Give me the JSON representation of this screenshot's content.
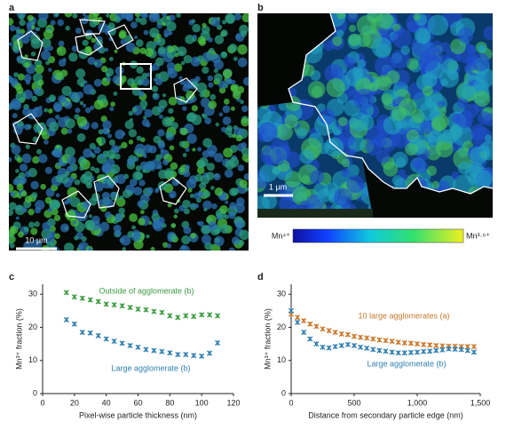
{
  "panels": {
    "a": {
      "label": "a",
      "scale_bar": "10 μm"
    },
    "b": {
      "label": "b",
      "scale_bar": "1 μm",
      "colorbar_low": "Mn⁴⁺",
      "colorbar_high": "Mn³·⁵⁺"
    }
  },
  "chart_data": [
    {
      "type": "scatter",
      "panel_label": "c",
      "xlabel": "Pixel-wise particle thickness (nm)",
      "ylabel": "Mn³⁺ fraction (%)",
      "xlim": [
        0,
        120
      ],
      "xticks": [
        0,
        20,
        40,
        60,
        80,
        100,
        120
      ],
      "ylim": [
        0,
        33
      ],
      "yticks": [
        0,
        10,
        20,
        30
      ],
      "x": [
        15,
        20,
        25,
        30,
        35,
        40,
        45,
        50,
        55,
        60,
        65,
        70,
        75,
        80,
        85,
        90,
        95,
        100,
        105,
        110
      ],
      "series": [
        {
          "name": "Outside of agglomerate (b)",
          "color": "#3a9a3e",
          "values": [
            30.5,
            29.2,
            28.8,
            28.3,
            27.8,
            27,
            26.8,
            26.5,
            26,
            25.5,
            25.3,
            24.8,
            24.5,
            23.5,
            23,
            23.5,
            23.3,
            23.8,
            23.8,
            23.5
          ]
        },
        {
          "name": "Large agglomerate (b)",
          "color": "#2f7fb0",
          "values": [
            22.3,
            21,
            18.5,
            18.3,
            17.5,
            16.5,
            15.8,
            15.2,
            14.5,
            14,
            13.3,
            13,
            12.7,
            12.3,
            11.8,
            11.8,
            11.5,
            11.3,
            12.2,
            15.3
          ]
        }
      ]
    },
    {
      "type": "scatter",
      "panel_label": "d",
      "xlabel": "Distance from secondary particle edge (nm)",
      "ylabel": "Mn³⁺ fraction (%)",
      "xlim": [
        0,
        1500
      ],
      "xticks": [
        0,
        500,
        {
          "value": 1000,
          "label": "1,000"
        },
        {
          "value": 1500,
          "label": "1,500"
        }
      ],
      "ylim": [
        0,
        33
      ],
      "yticks": [
        0,
        10,
        20,
        30
      ],
      "x": [
        0,
        50,
        100,
        150,
        200,
        250,
        300,
        350,
        400,
        450,
        500,
        550,
        600,
        650,
        700,
        750,
        800,
        850,
        900,
        950,
        1000,
        1050,
        1100,
        1150,
        1200,
        1250,
        1300,
        1350,
        1400,
        1450
      ],
      "series": [
        {
          "name": "10 large agglomerates (a)",
          "color": "#c9782a",
          "values": [
            24,
            23,
            22,
            21,
            20.3,
            19.5,
            19,
            18.5,
            18,
            17.8,
            17.3,
            17,
            16.8,
            16.5,
            16.2,
            16,
            15.8,
            15.5,
            15.3,
            15.2,
            15,
            14.8,
            14.7,
            14.5,
            14.4,
            14.3,
            14.3,
            14.2,
            14.2,
            14.2
          ]
        },
        {
          "name": "Large agglomerate (b)",
          "color": "#2f7fb0",
          "values": [
            25,
            21.5,
            18.5,
            16.5,
            15,
            14,
            13.8,
            14.2,
            14.5,
            14.8,
            14.5,
            14,
            13.7,
            13.3,
            13,
            12.8,
            12.5,
            12.3,
            12.3,
            12.4,
            12.5,
            12.7,
            12.8,
            13,
            13.2,
            13.5,
            13.4,
            13.3,
            13,
            12.5
          ]
        }
      ]
    }
  ]
}
